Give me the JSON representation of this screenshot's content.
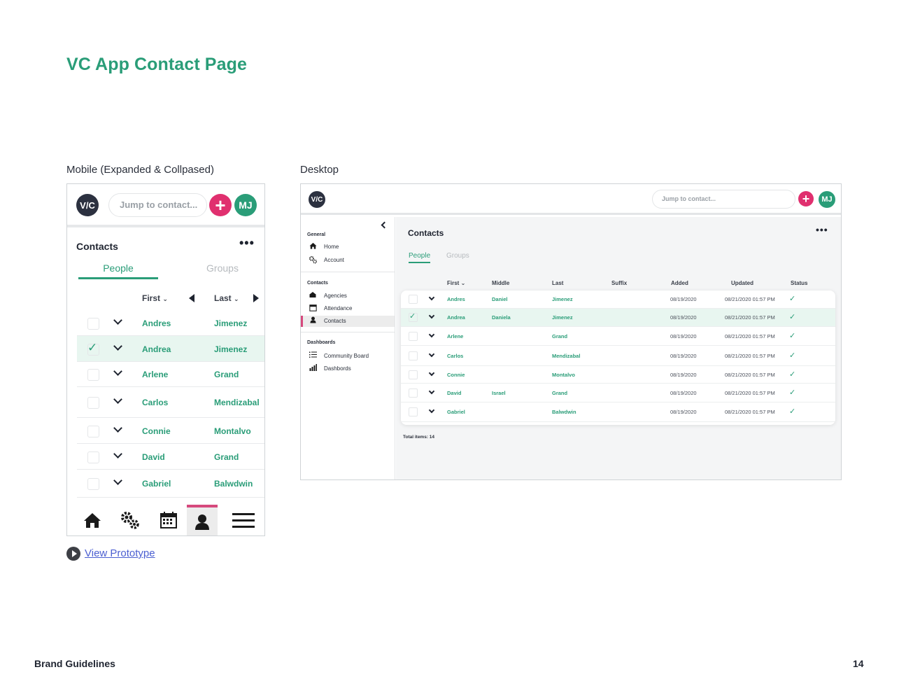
{
  "page": {
    "title": "VC App Contact Page",
    "mobile_label": "Mobile (Expanded & Collpased)",
    "desktop_label": "Desktop",
    "prototype_link": "View Prototype",
    "footer_left": "Brand Guidelines",
    "page_number": "14"
  },
  "colors": {
    "accent": "#2a9d78",
    "add": "#e0306f",
    "active_nav": "#d6497d",
    "selected_row": "#e8f6f0"
  },
  "app": {
    "logo": "V/C",
    "search_placeholder": "Jump to contact...",
    "add_icon": "+",
    "avatar": "MJ",
    "heading": "Contacts",
    "more": "•••",
    "tabs": [
      "People",
      "Groups"
    ]
  },
  "mobile": {
    "columns": [
      "First",
      "Last"
    ],
    "rows": [
      {
        "first": "Andres",
        "last": "Jimenez",
        "selected": false
      },
      {
        "first": "Andrea",
        "last": "Jimenez",
        "selected": true
      },
      {
        "first": "Arlene",
        "last": "Grand",
        "selected": false
      },
      {
        "first": "Carlos",
        "last": "Mendizabal",
        "selected": false
      },
      {
        "first": "Connie",
        "last": "Montalvo",
        "selected": false
      },
      {
        "first": "David",
        "last": "Grand",
        "selected": false
      },
      {
        "first": "Gabriel",
        "last": "Balwdwin",
        "selected": false
      }
    ],
    "nav": [
      "home-icon",
      "gears-icon",
      "calendar-icon",
      "person-icon",
      "menu-icon"
    ]
  },
  "desktop": {
    "sidebar": {
      "general": "General",
      "general_items": [
        {
          "label": "Home",
          "icon": "home-icon"
        },
        {
          "label": "Account",
          "icon": "gears-icon"
        }
      ],
      "contacts": "Contacts",
      "contacts_items": [
        {
          "label": "Agencies",
          "icon": "agencies-icon"
        },
        {
          "label": "Attendance",
          "icon": "calendar-icon"
        },
        {
          "label": "Contacts",
          "icon": "person-icon"
        }
      ],
      "dashboards": "Dashboards",
      "dashboards_items": [
        {
          "label": "Community Board",
          "icon": "list-icon"
        },
        {
          "label": "Dashbords",
          "icon": "bar-chart-icon"
        }
      ]
    },
    "columns": [
      "First",
      "Middle",
      "Last",
      "Suffix",
      "Added",
      "Updated",
      "Status"
    ],
    "rows": [
      {
        "first": "Andres",
        "middle": "Daniel",
        "last": "Jimenez",
        "added": "08/19/2020",
        "updated": "08/21/2020 01:57 PM",
        "selected": false
      },
      {
        "first": "Andrea",
        "middle": "Daniela",
        "last": "Jimenez",
        "added": "08/19/2020",
        "updated": "08/21/2020 01:57 PM",
        "selected": true
      },
      {
        "first": "Arlene",
        "middle": "",
        "last": "Grand",
        "added": "08/19/2020",
        "updated": "08/21/2020 01:57 PM",
        "selected": false
      },
      {
        "first": "Carlos",
        "middle": "",
        "last": "Mendizabal",
        "added": "08/19/2020",
        "updated": "08/21/2020 01:57 PM",
        "selected": false
      },
      {
        "first": "Connie",
        "middle": "",
        "last": "Montalvo",
        "added": "08/19/2020",
        "updated": "08/21/2020 01:57 PM",
        "selected": false
      },
      {
        "first": "David",
        "middle": "Israel",
        "last": "Grand",
        "added": "08/19/2020",
        "updated": "08/21/2020 01:57 PM",
        "selected": false
      },
      {
        "first": "Gabriel",
        "middle": "",
        "last": "Balwdwin",
        "added": "08/19/2020",
        "updated": "08/21/2020 01:57 PM",
        "selected": false
      }
    ],
    "total": "Total items: 14"
  }
}
